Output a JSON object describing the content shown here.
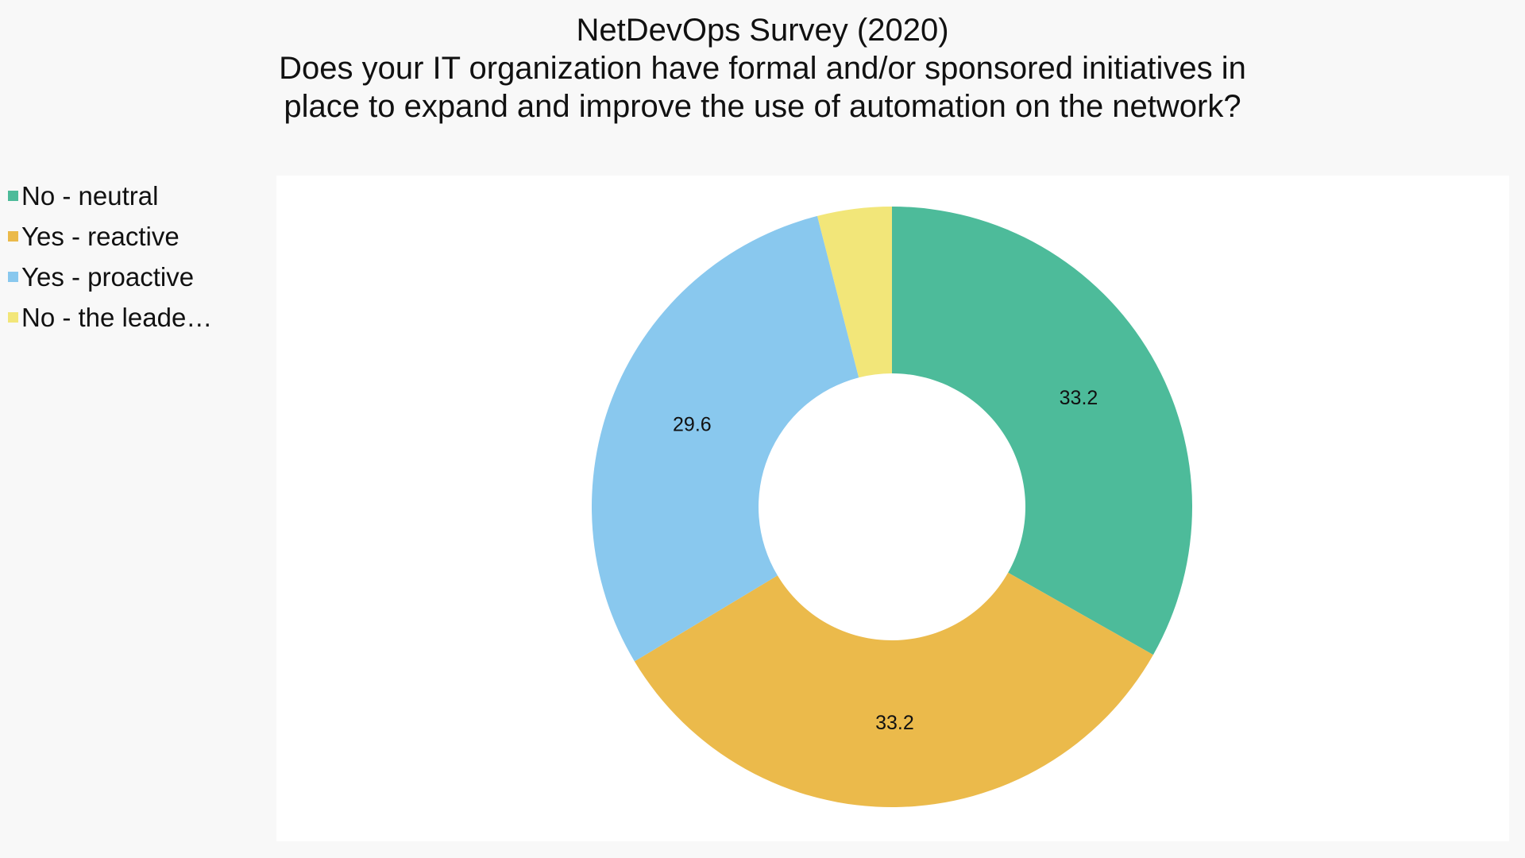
{
  "chart_data": {
    "type": "pie",
    "title": "NetDevOps Survey (2020)",
    "subtitle_lines": [
      "Does your IT organization have formal and/or sponsored initiatives in",
      "place to expand and improve the use of automation on the network?"
    ],
    "legend_position": "left",
    "donut": true,
    "series": [
      {
        "name": "No - neutral",
        "value": 33.2,
        "label": "33.2",
        "color": "#4dbb9a"
      },
      {
        "name": "Yes - reactive",
        "value": 33.2,
        "label": "33.2",
        "color": "#ebba4b"
      },
      {
        "name": "Yes - proactive",
        "value": 29.6,
        "label": "29.6",
        "color": "#89c8ee"
      },
      {
        "name": "No - the leade…",
        "value": 4.0,
        "label": "",
        "color": "#f2e679"
      }
    ]
  }
}
